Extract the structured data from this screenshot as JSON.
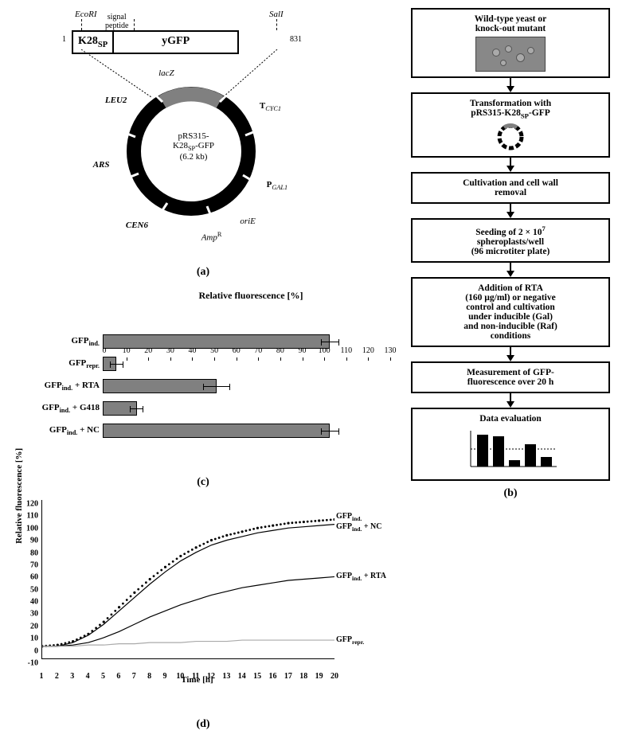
{
  "panelA": {
    "label": "(a)",
    "restriction_left": "EcoRI",
    "restriction_right": "SalI",
    "small_top_label": "signal\npeptide",
    "insert_left": "K28",
    "insert_left_sub": "SP",
    "insert_right": "yGFP",
    "nt_start": "1",
    "nt_end": "831",
    "plasmid": {
      "name_line1": "pRS315-",
      "name_line2": "K28",
      "name_line2_sub": "SP",
      "name_line2_tail": "-GFP",
      "size": "(6.2 kb)",
      "features": [
        {
          "label": "P",
          "sub": "GAL1",
          "angle": 115,
          "italic_sub": true,
          "weight": "bold"
        },
        {
          "label": "oriE",
          "angle": 145,
          "italic": true
        },
        {
          "label": "Amp",
          "sup": "R",
          "angle": 175,
          "italic": true
        },
        {
          "label": "CEN6",
          "angle": 210,
          "italic": true,
          "weight": "bold"
        },
        {
          "label": "ARS",
          "angle": 260,
          "italic": true,
          "weight": "bold"
        },
        {
          "label": "LEU2",
          "angle": 310,
          "italic": true,
          "weight": "bold"
        },
        {
          "label": "lacZ",
          "angle": 350,
          "italic": true
        },
        {
          "label": "T",
          "sub": "CYC1",
          "angle": 55,
          "italic_sub": true,
          "weight": "bold"
        }
      ],
      "insert_arc": {
        "start_deg": 60,
        "end_deg": 120,
        "color": "#808080"
      }
    }
  },
  "panelB": {
    "label": "(b)",
    "steps": [
      {
        "text": "Wild-type yeast or\nknock-out mutant",
        "thumb": "cells"
      },
      {
        "text_html": "Transformation with\npRS315-K28<sub>SP</sub>-GFP",
        "thumb": "plasmid"
      },
      {
        "text": "Cultivation and cell wall\nremoval"
      },
      {
        "text_html": "Seeding of  2 × 10<sup>7</sup>\nspheroplasts/well\n(96 microtiter plate)"
      },
      {
        "text": "Addition of RTA\n(160 µg/ml) or negative\ncontrol and cultivation\nunder inducible (Gal)\nand non-inducible (Raf)\nconditions"
      },
      {
        "text": "Measurement  of  GFP-\nfluorescence  over 20 h"
      },
      {
        "text": "Data evaluation",
        "thumb": "barchart"
      }
    ]
  },
  "panelC": {
    "label": "(c)",
    "title": "Relative fluorescence [%]",
    "xmax": 130,
    "xtick_step": 10,
    "bar_color": "#808080",
    "bars": [
      {
        "label_html": "GFP<sub>ind.</sub>",
        "value": 100,
        "err": 4
      },
      {
        "label_html": "GFP<sub>repr.</sub>",
        "value": 6,
        "err": 3
      },
      {
        "label_html": "GFP<sub>ind.</sub> + RTA",
        "value": 50,
        "err": 6
      },
      {
        "label_html": "GFP<sub>ind.</sub> + G418",
        "value": 15,
        "err": 3
      },
      {
        "label_html": "GFP<sub>ind.</sub> + NC",
        "value": 100,
        "err": 4
      }
    ]
  },
  "panelD": {
    "label": "(d)",
    "ylabel": "Relative fluorescence [%]",
    "xlabel": "Time [h]",
    "ymin": -10,
    "ymax": 120,
    "ytick_step": 10,
    "xmin": 1,
    "xmax": 20,
    "xtick_step": 1,
    "series": [
      {
        "name_html": "GFP<sub>ind.</sub>",
        "color": "#000000",
        "style": "dotted-thick",
        "label_x": 20.2,
        "label_y": 106,
        "points": [
          [
            1,
            0
          ],
          [
            2,
            1
          ],
          [
            3,
            4
          ],
          [
            4,
            10
          ],
          [
            5,
            20
          ],
          [
            6,
            32
          ],
          [
            7,
            44
          ],
          [
            8,
            55
          ],
          [
            9,
            65
          ],
          [
            10,
            74
          ],
          [
            11,
            81
          ],
          [
            12,
            87
          ],
          [
            13,
            91
          ],
          [
            14,
            94
          ],
          [
            15,
            97
          ],
          [
            16,
            99
          ],
          [
            17,
            101
          ],
          [
            18,
            102
          ],
          [
            19,
            103
          ],
          [
            20,
            104
          ]
        ]
      },
      {
        "name_html": "GFP<sub>ind.</sub> + NC",
        "color": "#000000",
        "style": "line-thin",
        "label_x": 20.2,
        "label_y": 98,
        "points": [
          [
            1,
            0
          ],
          [
            2,
            0
          ],
          [
            3,
            3
          ],
          [
            4,
            9
          ],
          [
            5,
            18
          ],
          [
            6,
            29
          ],
          [
            7,
            40
          ],
          [
            8,
            51
          ],
          [
            9,
            61
          ],
          [
            10,
            70
          ],
          [
            11,
            77
          ],
          [
            12,
            83
          ],
          [
            13,
            87
          ],
          [
            14,
            90
          ],
          [
            15,
            93
          ],
          [
            16,
            95
          ],
          [
            17,
            97
          ],
          [
            18,
            98
          ],
          [
            19,
            99
          ],
          [
            20,
            100
          ]
        ]
      },
      {
        "name_html": "GFP<sub>ind.</sub> + RTA",
        "color": "#000000",
        "style": "line-thin",
        "label_x": 20.2,
        "label_y": 57,
        "points": [
          [
            1,
            0
          ],
          [
            2,
            0
          ],
          [
            3,
            1
          ],
          [
            4,
            3
          ],
          [
            5,
            7
          ],
          [
            6,
            12
          ],
          [
            7,
            18
          ],
          [
            8,
            24
          ],
          [
            9,
            29
          ],
          [
            10,
            34
          ],
          [
            11,
            38
          ],
          [
            12,
            42
          ],
          [
            13,
            45
          ],
          [
            14,
            48
          ],
          [
            15,
            50
          ],
          [
            16,
            52
          ],
          [
            17,
            54
          ],
          [
            18,
            55
          ],
          [
            19,
            56
          ],
          [
            20,
            57
          ]
        ]
      },
      {
        "name_html": "GFP<sub>repr.</sub>",
        "color": "#aaaaaa",
        "style": "line-thin",
        "label_x": 20.2,
        "label_y": 5,
        "points": [
          [
            1,
            0
          ],
          [
            2,
            0
          ],
          [
            3,
            0
          ],
          [
            4,
            1
          ],
          [
            5,
            1
          ],
          [
            6,
            2
          ],
          [
            7,
            2
          ],
          [
            8,
            3
          ],
          [
            9,
            3
          ],
          [
            10,
            3
          ],
          [
            11,
            4
          ],
          [
            12,
            4
          ],
          [
            13,
            4
          ],
          [
            14,
            5
          ],
          [
            15,
            5
          ],
          [
            16,
            5
          ],
          [
            17,
            5
          ],
          [
            18,
            5
          ],
          [
            19,
            5
          ],
          [
            20,
            5
          ]
        ]
      }
    ]
  }
}
